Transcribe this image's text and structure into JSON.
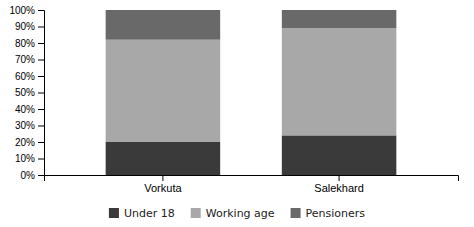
{
  "chart_data": {
    "type": "bar",
    "stacked": true,
    "categories": [
      "Vorkuta",
      "Salekhard"
    ],
    "series": [
      {
        "name": "Under 18",
        "color": "#3a3a3a",
        "values": [
          0.2,
          0.24
        ]
      },
      {
        "name": "Working age",
        "color": "#a8a8a8",
        "values": [
          0.62,
          0.65
        ]
      },
      {
        "name": "Pensioners",
        "color": "#696969",
        "values": [
          0.18,
          0.11
        ]
      }
    ],
    "ylim": [
      0,
      1
    ],
    "yticks": [
      {
        "value": 0,
        "label": "0%"
      },
      {
        "value": 0.1,
        "label": "10%"
      },
      {
        "value": 0.2,
        "label": "20%"
      },
      {
        "value": 0.3,
        "label": "30%"
      },
      {
        "value": 0.4,
        "label": "40%"
      },
      {
        "value": 0.5,
        "label": "50%"
      },
      {
        "value": 0.6,
        "label": "60%"
      },
      {
        "value": 0.7,
        "label": "70%"
      },
      {
        "value": 0.8,
        "label": "80%"
      },
      {
        "value": 0.9,
        "label": "90%"
      },
      {
        "value": 1.0,
        "label": "100%"
      }
    ],
    "grid": false,
    "legend": "bottom"
  }
}
